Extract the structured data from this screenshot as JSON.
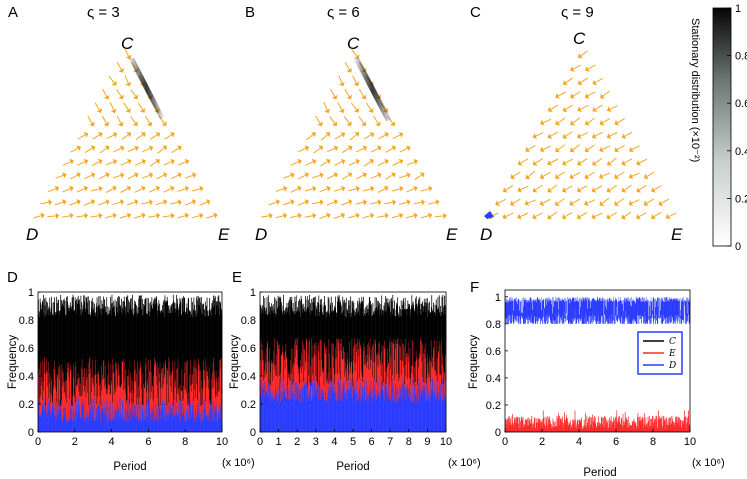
{
  "colors": {
    "cooperator": "#000000",
    "extortioner": "#ff2a2a",
    "defector": "#2b3cff",
    "arrow": "#f5a623"
  },
  "simplex_panels": [
    {
      "panel_label": "A",
      "sigma_label": "ς = 3",
      "labels": {
        "top": "C",
        "left": "D",
        "right": "E"
      }
    },
    {
      "panel_label": "B",
      "sigma_label": "ς = 6",
      "labels": {
        "top": "C",
        "left": "D",
        "right": "E"
      }
    },
    {
      "panel_label": "C",
      "sigma_label": "ς = 9",
      "labels": {
        "top": "C",
        "left": "D",
        "right": "E"
      }
    }
  ],
  "colorbar": {
    "title": "Stationary distribution (×10⁻²)",
    "ticks": [
      "1",
      "0.8",
      "0.6",
      "0.4",
      "0.2",
      "0"
    ]
  },
  "chart_data": [
    {
      "type": "area",
      "panel_label": "D",
      "xlabel": "Period",
      "ylabel": "Frequency",
      "x_multiplier": "(x 10⁶)",
      "xlim": [
        0,
        10
      ],
      "ylim": [
        0,
        1
      ],
      "x_ticks": [
        "0",
        "2",
        "4",
        "6",
        "8",
        "10"
      ],
      "y_ticks": [
        "0",
        "0.2",
        "0.4",
        "0.6",
        "0.8",
        "1"
      ],
      "series": [
        {
          "values_approx_cumulative_top": 1.0
        },
        {
          "values_approx_cumulative_top": 0.36
        },
        {
          "values_approx_cumulative_top": 0.16
        }
      ]
    },
    {
      "type": "area",
      "panel_label": "E",
      "xlabel": "Period",
      "ylabel": "Frequency",
      "x_multiplier": "(x 10⁶)",
      "xlim": [
        0,
        10
      ],
      "ylim": [
        0,
        1
      ],
      "x_ticks": [
        "0",
        "1",
        "2",
        "3",
        "4",
        "5",
        "6",
        "7",
        "8",
        "9",
        "10"
      ],
      "y_ticks": [
        "0",
        "0.2",
        "0.4",
        "0.6",
        "0.8",
        "1"
      ],
      "series": [
        {
          "values_approx_cumulative_top": 1.0
        },
        {
          "values_approx_cumulative_top": 0.5
        },
        {
          "values_approx_cumulative_top": 0.3
        }
      ]
    },
    {
      "type": "area",
      "panel_label": "F",
      "xlabel": "Period",
      "ylabel": "Frequency",
      "x_multiplier": "(x 10⁶)",
      "xlim": [
        0,
        10
      ],
      "ylim": [
        0,
        1.05
      ],
      "x_ticks": [
        "0",
        "2",
        "4",
        "6",
        "8",
        "10"
      ],
      "y_ticks": [
        "0",
        "0.2",
        "0.4",
        "0.6",
        "0.8",
        "1"
      ],
      "legend": [
        "C",
        "E",
        "D"
      ],
      "legend_position": "right",
      "series": [
        {
          "name": "C",
          "values_approx_cumulative_top": 0.0
        },
        {
          "name": "E",
          "values_approx_cumulative_top": 0.08
        },
        {
          "name": "D",
          "values_approx_cumulative_top": 1.0
        }
      ]
    }
  ]
}
